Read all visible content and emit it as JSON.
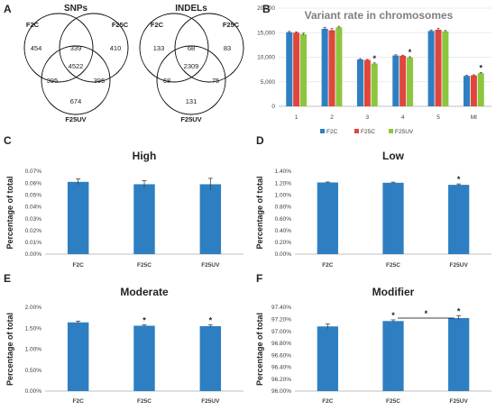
{
  "panel_letters": [
    "A",
    "B",
    "C",
    "D",
    "E",
    "F"
  ],
  "venn": [
    {
      "title": "SNPs",
      "labels": [
        "F2C",
        "F25C",
        "F25UV"
      ],
      "regions": {
        "only_a": "454",
        "only_b": "410",
        "only_c": "674",
        "ab": "339",
        "ac": "395",
        "bc": "395",
        "abc": "4522"
      }
    },
    {
      "title": "INDELs",
      "labels": [
        "F2C",
        "F25C",
        "F25UV"
      ],
      "regions": {
        "only_a": "133",
        "only_b": "83",
        "only_c": "131",
        "ab": "68",
        "ac": "68",
        "bc": "75",
        "abc": "2309"
      }
    }
  ],
  "colors": {
    "bar_single": "#2e7fc2",
    "series": [
      "#2e7fc2",
      "#e0463c",
      "#8cc63e"
    ],
    "error_bar": "#404040",
    "axis": "#bfbfbf"
  },
  "chart_data": [
    {
      "panel": "B",
      "type": "bar",
      "title": "Variant rate in chromosomes",
      "categories": [
        "1",
        "2",
        "3",
        "4",
        "5",
        "Mt"
      ],
      "series": [
        {
          "name": "F2C",
          "values": [
            15100,
            15800,
            9550,
            10350,
            15350,
            6200
          ],
          "errors": [
            150,
            300,
            150,
            150,
            200,
            120
          ]
        },
        {
          "name": "F25C",
          "values": [
            15000,
            15500,
            9450,
            10300,
            15600,
            6300
          ],
          "errors": [
            150,
            350,
            120,
            120,
            300,
            120
          ]
        },
        {
          "name": "F25UV",
          "values": [
            14700,
            16100,
            8700,
            9950,
            15250,
            6750
          ],
          "errors": [
            200,
            200,
            150,
            150,
            200,
            150
          ]
        }
      ],
      "yticks": [
        "0",
        "5,000",
        "10,000",
        "15,000",
        "20,000"
      ],
      "ylim": [
        0,
        20000
      ],
      "legend_position": "bottom",
      "stars": [
        {
          "category": "3",
          "series": "F25UV"
        },
        {
          "category": "4",
          "series": "F25UV"
        },
        {
          "category": "Mt",
          "series": "F25UV"
        }
      ]
    },
    {
      "panel": "C",
      "type": "bar",
      "title": "High",
      "ylabel": "Percentage of total",
      "categories": [
        "F2C",
        "F25C",
        "F25UV"
      ],
      "values": [
        0.061,
        0.059,
        0.059
      ],
      "errors": [
        0.0025,
        0.003,
        0.005
      ],
      "ylim": [
        0,
        0.07
      ],
      "yticks": [
        "0.00%",
        "0.01%",
        "0.02%",
        "0.03%",
        "0.04%",
        "0.05%",
        "0.06%",
        "0.07%"
      ],
      "stars": []
    },
    {
      "panel": "D",
      "type": "bar",
      "title": "Low",
      "ylabel": "Percentage of total",
      "categories": [
        "F2C",
        "F25C",
        "F25UV"
      ],
      "values": [
        1.21,
        1.205,
        1.17
      ],
      "errors": [
        0.008,
        0.01,
        0.015
      ],
      "ylim": [
        0,
        1.4
      ],
      "yticks": [
        "0.00%",
        "0.20%",
        "0.40%",
        "0.60%",
        "0.80%",
        "1.00%",
        "1.20%",
        "1.40%"
      ],
      "stars": [
        "F25UV"
      ]
    },
    {
      "panel": "E",
      "type": "bar",
      "title": "Moderate",
      "ylabel": "Percentage of total",
      "categories": [
        "F2C",
        "F25C",
        "F25UV"
      ],
      "values": [
        1.64,
        1.56,
        1.55
      ],
      "errors": [
        0.03,
        0.02,
        0.03
      ],
      "ylim": [
        0,
        2.0
      ],
      "yticks": [
        "0.00%",
        "0.50%",
        "1.00%",
        "1.50%",
        "2.00%"
      ],
      "stars": [
        "F25C",
        "F25UV"
      ]
    },
    {
      "panel": "F",
      "type": "bar",
      "title": "Modifier",
      "ylabel": "Percentage of total",
      "categories": [
        "F2C",
        "F25C",
        "F25UV"
      ],
      "values": [
        97.08,
        97.17,
        97.22
      ],
      "errors": [
        0.04,
        0.02,
        0.04
      ],
      "ylim": [
        96.0,
        97.4
      ],
      "yticks": [
        "96.00%",
        "96.20%",
        "96.40%",
        "96.60%",
        "96.80%",
        "97.00%",
        "97.20%",
        "97.40%"
      ],
      "stars": [
        "F25C",
        "F25UV"
      ],
      "bracket": {
        "from": "F25C",
        "to": "F25UV",
        "label": "*"
      }
    }
  ]
}
